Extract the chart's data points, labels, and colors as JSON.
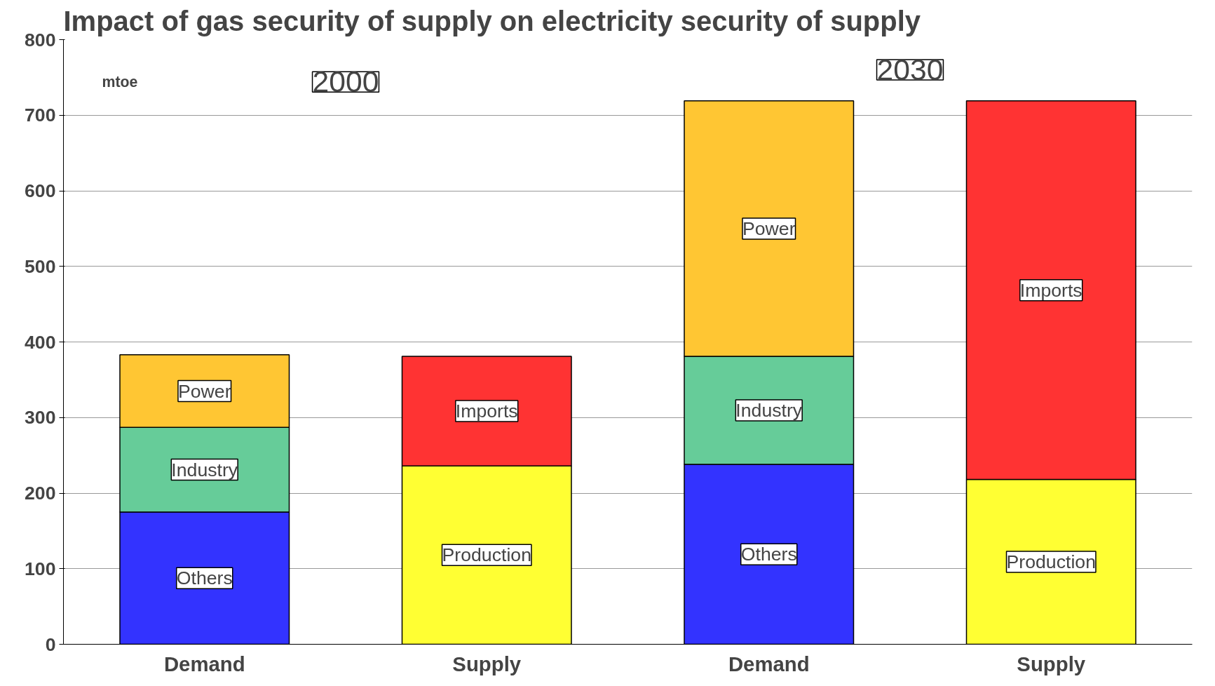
{
  "chart_data": {
    "type": "bar",
    "title": "Impact of gas security of supply on electricity security of supply",
    "categories": [
      "Demand",
      "Supply",
      "Demand",
      "Supply"
    ],
    "stacked": true,
    "series": [
      {
        "name": "Others",
        "color": "#3333ff",
        "values": [
          175,
          null,
          238,
          null
        ]
      },
      {
        "name": "Industry",
        "color": "#66cc99",
        "values": [
          112,
          null,
          143,
          null
        ]
      },
      {
        "name": "Power",
        "color": "#ffc633",
        "values": [
          96,
          null,
          338,
          null
        ]
      },
      {
        "name": "Production",
        "color": "#ffff33",
        "values": [
          null,
          236,
          null,
          218
        ]
      },
      {
        "name": "Imports",
        "color": "#ff3333",
        "values": [
          null,
          145,
          null,
          501
        ]
      }
    ],
    "ylim": [
      0,
      800
    ],
    "yticks": [
      0,
      100,
      200,
      300,
      400,
      500,
      600,
      700,
      800
    ],
    "grid": "y",
    "annotations": [
      "mtoe",
      "2000",
      "2030"
    ]
  }
}
